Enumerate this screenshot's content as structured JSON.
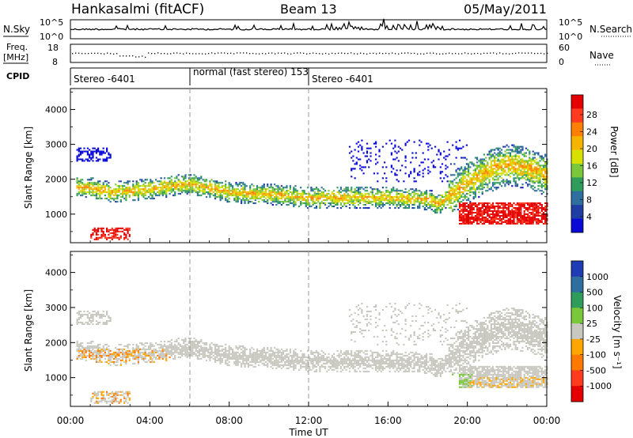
{
  "header": {
    "station": "Hankasalmi (fitACF)",
    "beam": "Beam 13",
    "date": "05/May/2011"
  },
  "panels": {
    "noise": {
      "left_label": "N.Sky",
      "right_label": "N.Search",
      "left_ticks": [
        "10^5",
        "10^0"
      ],
      "right_ticks": [
        "10^5",
        "10^0"
      ]
    },
    "freq": {
      "left_label_1": "Freq.",
      "left_label_2": "[MHz]",
      "right_label": "Nave",
      "left_ticks": [
        "18",
        "8"
      ],
      "right_ticks": [
        "60",
        "0"
      ]
    },
    "cpid": {
      "label": "CPID",
      "segments": [
        {
          "text": "Stereo -6401",
          "start_hour": 0
        },
        {
          "text": "normal (fast stereo) 153",
          "start_hour": 6
        },
        {
          "text": "Stereo -6401",
          "start_hour": 12
        }
      ]
    }
  },
  "legends": {
    "power": {
      "title": "Power [dB]",
      "labels": [
        "28",
        "24",
        "20",
        "16",
        "12",
        "8",
        "4"
      ],
      "colors": [
        "#e40000",
        "#ff3a1e",
        "#ff7f00",
        "#f5b400",
        "#d8e000",
        "#7ac83a",
        "#2f9c5c",
        "#2e6fa0",
        "#1f3ea3",
        "#0a0ad6"
      ]
    },
    "velocity": {
      "title": "Velocity [m s⁻¹]",
      "labels": [
        "1000",
        "500",
        "100",
        "25",
        "-25",
        "-100",
        "-500",
        "-1000"
      ],
      "colors": [
        "#1e3cb4",
        "#2e6fa0",
        "#2f9c5c",
        "#79c83a",
        "#c8c8c0",
        "#ffa500",
        "#ff7800",
        "#ff3a1e",
        "#e40000"
      ]
    }
  },
  "chart_data": [
    {
      "type": "heatmap",
      "name": "power",
      "xlabel": "",
      "ylabel": "Slant Range [km]",
      "xlim": [
        0,
        24
      ],
      "ylim": [
        180,
        4600
      ],
      "yticks": [
        1000,
        2000,
        3000,
        4000
      ],
      "colorbar_label": "Power [dB]",
      "colorbar_range": [
        0,
        30
      ],
      "echo_bands": [
        {
          "x": [
            0.8,
            2.0,
            4.0,
            6.0,
            8.0,
            10.0,
            12.0,
            14.0,
            16.0,
            18.0,
            18.5,
            19.0,
            20.0,
            21.0,
            22.0,
            23.0,
            24.0
          ],
          "y": [
            1750,
            1600,
            1700,
            1850,
            1600,
            1550,
            1450,
            1450,
            1450,
            1400,
            1250,
            1500,
            1900,
            2200,
            2400,
            2300,
            2100
          ],
          "power_db": 18
        }
      ]
    },
    {
      "type": "heatmap",
      "name": "velocity",
      "xlabel": "Time UT",
      "ylabel": "Slant Range [km]",
      "xlim": [
        0,
        24
      ],
      "ylim": [
        180,
        4600
      ],
      "xticks": [
        "00:00",
        "04:00",
        "08:00",
        "12:00",
        "16:00",
        "20:00",
        "00:00"
      ],
      "yticks": [
        1000,
        2000,
        3000,
        4000
      ],
      "colorbar_label": "Velocity [m s⁻¹]",
      "colorbar_range": [
        -1000,
        1000
      ]
    }
  ],
  "time_axis": {
    "label": "Time UT",
    "ticks": [
      "00:00",
      "04:00",
      "08:00",
      "12:00",
      "16:00",
      "20:00",
      "00:00"
    ]
  },
  "range_axis": {
    "label": "Slant Range [km]",
    "ticks": [
      "1000",
      "2000",
      "3000",
      "4000"
    ]
  }
}
